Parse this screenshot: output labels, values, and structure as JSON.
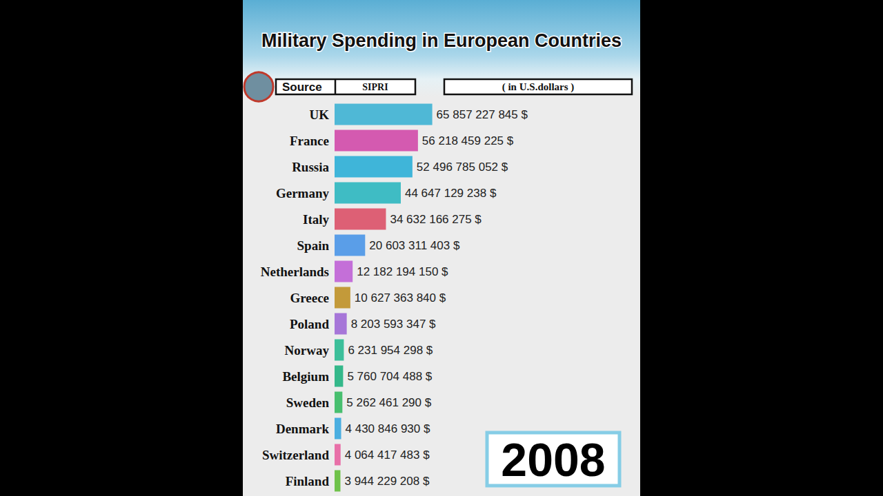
{
  "chart_data": {
    "type": "bar",
    "orientation": "horizontal",
    "title": "Military Spending in European Countries",
    "source_label": "Source",
    "source": "SIPRI",
    "units": "( in U.S.dollars )",
    "year": "2008",
    "categories": [
      "UK",
      "France",
      "Russia",
      "Germany",
      "Italy",
      "Spain",
      "Netherlands",
      "Greece",
      "Poland",
      "Norway",
      "Belgium",
      "Sweden",
      "Denmark",
      "Switzerland",
      "Finland"
    ],
    "values": [
      65857227845,
      56218459225,
      52496785052,
      44647129238,
      34632166275,
      20603311403,
      12182194150,
      10627363840,
      8203593347,
      6231954298,
      5760704488,
      5262461290,
      4430846930,
      4064417483,
      3944229208
    ],
    "value_labels": [
      "65 857 227 845 $",
      "56 218 459 225 $",
      "52 496 785 052 $",
      "44 647 129 238 $",
      "34 632 166 275 $",
      "20 603 311 403 $",
      "12 182 194 150 $",
      "10 627 363 840 $",
      "8 203 593 347 $",
      "6 231 954 298 $",
      "5 760 704 488 $",
      "5 262 461 290 $",
      "4 430 846 930 $",
      "4 064 417 483 $",
      "3 944 229 208 $"
    ],
    "colors": [
      "#4fb8d6",
      "#d45ab0",
      "#3fb5d9",
      "#3fbcc4",
      "#dd6075",
      "#5a9ee8",
      "#c46fd8",
      "#c39a3a",
      "#a676d8",
      "#3cbf9a",
      "#34b88a",
      "#48bf6f",
      "#4aaee0",
      "#e870a8",
      "#6fc24a"
    ],
    "xlim": [
      0,
      200000000000
    ],
    "tick_labels": false,
    "data_labels": true,
    "grid": false
  }
}
